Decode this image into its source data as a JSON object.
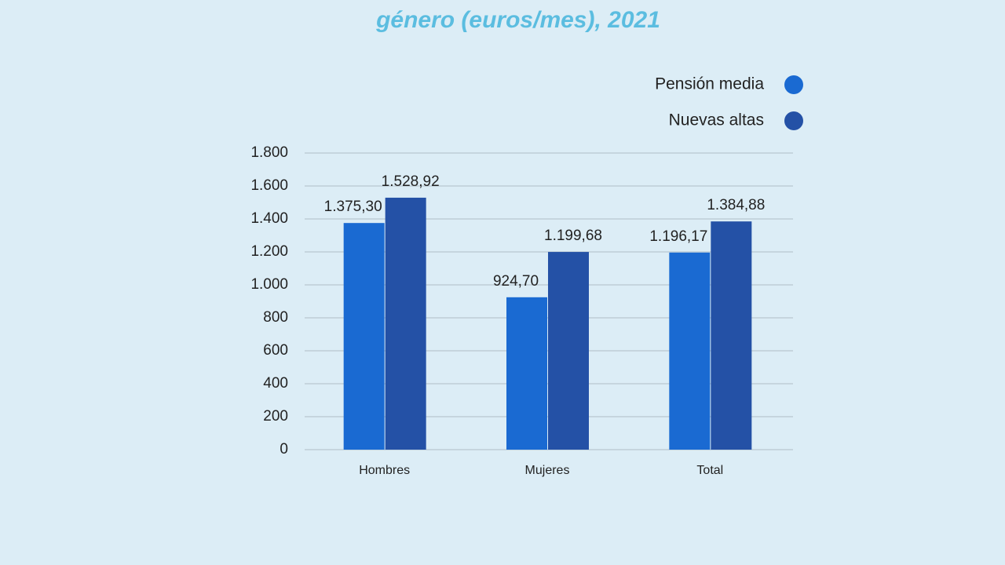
{
  "chart_data": {
    "type": "bar",
    "title": "género (euros/mes), 2021",
    "categories": [
      "Hombres",
      "Mujeres",
      "Total"
    ],
    "series": [
      {
        "name": "Pensión media",
        "color": "#1a6ad2",
        "values": [
          1375.3,
          924.7,
          1196.17
        ],
        "value_labels": [
          "1.375,30",
          "924,70",
          "1.196,17"
        ]
      },
      {
        "name": "Nuevas altas",
        "color": "#2451a6",
        "values": [
          1528.92,
          1199.68,
          1384.88
        ],
        "value_labels": [
          "1.528,92",
          "1.199,68",
          "1.384,88"
        ]
      }
    ],
    "ylim": [
      0,
      1800
    ],
    "yticks": [
      0,
      200,
      400,
      600,
      800,
      {
        "value": 1000,
        "label": "1.000"
      },
      {
        "value": 1200,
        "label": "1.200"
      },
      {
        "value": 1400,
        "label": "1.400"
      },
      {
        "value": 1600,
        "label": "1.600"
      },
      {
        "value": 1800,
        "label": "1.800"
      }
    ],
    "grid": true,
    "legend": "top-right"
  }
}
